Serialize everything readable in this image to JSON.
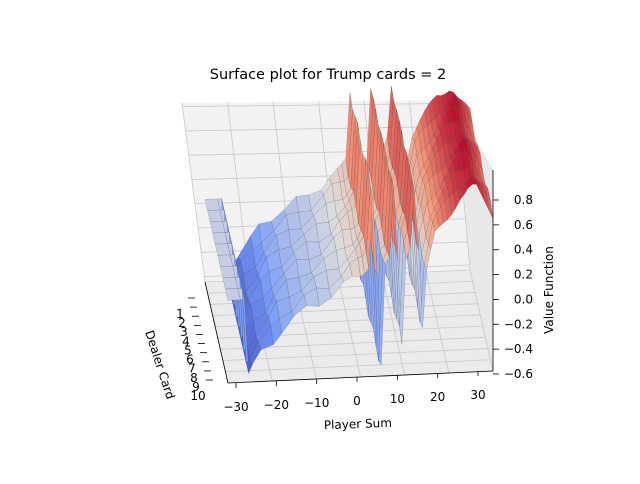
{
  "chart_data": {
    "type": "surface",
    "title": "Surface plot for Trump cards = 2",
    "xlabel": "Player Sum",
    "ylabel": "Dealer Card",
    "zlabel": "Value Function",
    "x_ticks": [
      "−30",
      "−20",
      "−10",
      "0",
      "10",
      "20",
      "30"
    ],
    "y_ticks": [
      "1",
      "2",
      "3",
      "4",
      "5",
      "6",
      "7",
      "8",
      "9",
      "10"
    ],
    "z_ticks": [
      "−0.6",
      "−0.4",
      "−0.2",
      "0.0",
      "0.2",
      "0.4",
      "0.6",
      "0.8"
    ],
    "x_range": [
      -33,
      31
    ],
    "y_range": [
      1,
      10
    ],
    "z_range": [
      -0.62,
      0.92
    ],
    "colormap": "coolwarm",
    "grid": true,
    "surface_profile": {
      "x": [
        -33,
        -30,
        -29,
        -28,
        -27,
        -25,
        -22,
        -20,
        -17,
        -14,
        -11,
        -8,
        -5,
        -3,
        -1,
        0,
        1,
        2,
        3,
        4,
        5,
        6,
        7,
        8,
        9,
        10,
        11,
        12,
        13,
        14,
        15,
        16,
        17,
        18,
        19,
        20,
        21,
        22,
        23,
        24,
        25,
        26,
        27,
        28,
        29,
        30,
        31
      ],
      "value": [
        0.05,
        0.05,
        0.05,
        -0.55,
        -0.5,
        -0.4,
        -0.3,
        -0.2,
        -0.12,
        -0.05,
        0.0,
        0.05,
        0.12,
        0.18,
        0.22,
        0.25,
        0.3,
        0.85,
        0.2,
        -0.55,
        0.25,
        0.3,
        0.9,
        0.3,
        -0.35,
        0.35,
        0.45,
        0.9,
        0.4,
        -0.25,
        0.2,
        0.35,
        0.5,
        0.55,
        0.6,
        0.65,
        0.7,
        0.75,
        0.8,
        0.82,
        0.85,
        0.88,
        0.86,
        0.8,
        0.75,
        0.7,
        0.65
      ]
    }
  }
}
